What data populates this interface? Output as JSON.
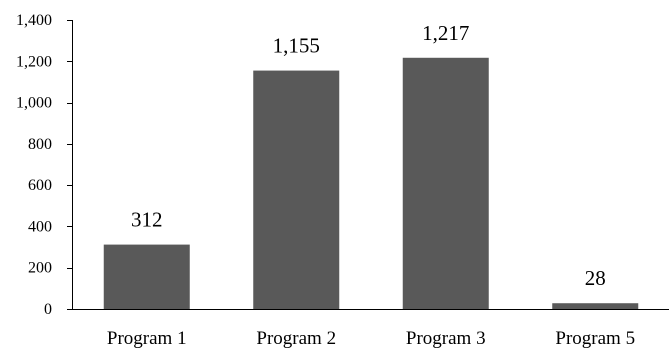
{
  "chart_data": {
    "type": "bar",
    "categories": [
      "Program 1",
      "Program 2",
      "Program 3",
      "Program 5"
    ],
    "values": [
      312,
      1155,
      1217,
      28
    ],
    "data_labels": [
      "312",
      "1,155",
      "1,217",
      "28"
    ],
    "title": "",
    "xlabel": "",
    "ylabel": "",
    "ylim": [
      0,
      1400
    ],
    "y_ticks": [
      0,
      200,
      400,
      600,
      800,
      1000,
      1200,
      1400
    ],
    "y_tick_labels": [
      "0",
      "200",
      "400",
      "600",
      "800",
      "1,000",
      "1,200",
      "1,400"
    ],
    "grid": false,
    "legend": "none",
    "bar_color": "#595959"
  }
}
